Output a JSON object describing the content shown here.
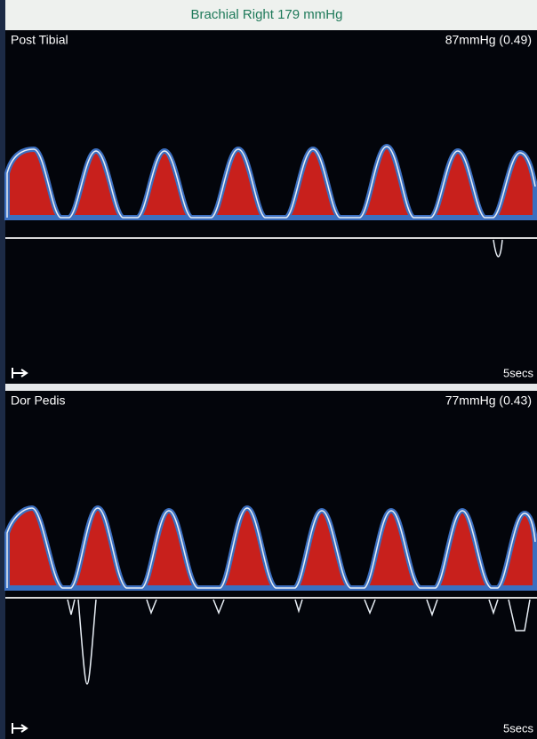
{
  "header": {
    "title": "Brachial Right 179 mmHg"
  },
  "panels": [
    {
      "label": "Post Tibial",
      "pressure": "87mmHg (0.49)",
      "scale": "5secs"
    },
    {
      "label": "Dor Pedis",
      "pressure": "77mmHg (0.43)",
      "scale": "5secs"
    }
  ]
}
